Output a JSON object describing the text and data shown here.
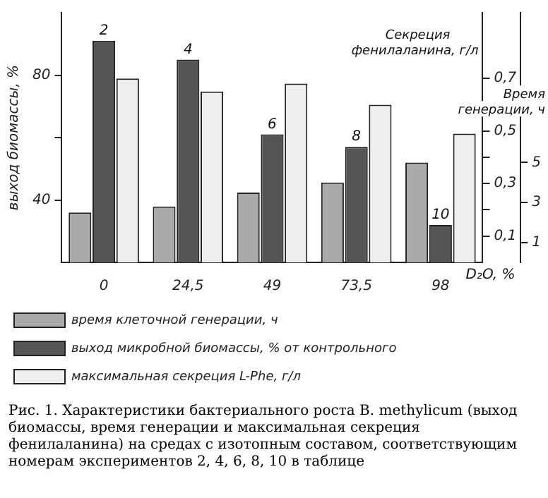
{
  "chart_data": {
    "type": "bar",
    "ylabel": "выход биомассы, %",
    "y2label": "Секреция фенилаланина, г/л",
    "y3label": "Время генерации, ч",
    "xlabel": "D₂O, %",
    "categories": [
      "0",
      "24,5",
      "49",
      "73,5",
      "98"
    ],
    "ylim": [
      20,
      100
    ],
    "yticks": [
      40,
      {
        "value": 60,
        "label": null
      },
      80
    ],
    "y2lim": [
      0,
      0.95
    ],
    "y2ticks": [
      {
        "value": 0.1,
        "label": "0,1"
      },
      {
        "value": 0.2,
        "label": null
      },
      {
        "value": 0.3,
        "label": "0,3"
      },
      {
        "value": 0.4,
        "label": null
      },
      {
        "value": 0.5,
        "label": "0,5"
      },
      {
        "value": 0.6,
        "label": null
      },
      {
        "value": 0.7,
        "label": "0,7"
      }
    ],
    "y3lim": [
      0,
      12.5
    ],
    "y3ticks": [
      1,
      3,
      5
    ],
    "series": [
      {
        "name": "выход микробной биомассы, % от контрольного",
        "color": "#555555",
        "values": [
          91,
          85,
          61,
          57,
          32
        ]
      },
      {
        "name": "максимальная секреция L-Phe, г/л",
        "color": "#eeeeee",
        "axis": "y2",
        "values": [
          0.7,
          0.65,
          0.68,
          0.6,
          0.49
        ]
      },
      {
        "name": "время клеточной генерации, ч",
        "color": "#aaaaaa",
        "axis": "y3",
        "values": [
          2.5,
          2.8,
          3.5,
          4.0,
          5.0
        ]
      }
    ],
    "annotations": [
      {
        "text": "2",
        "x": "0",
        "y": 91
      },
      {
        "text": "4",
        "x": "24,5",
        "y": 85
      },
      {
        "text": "6",
        "x": "49",
        "y": 61
      },
      {
        "text": "8",
        "x": "73,5",
        "y": 57
      },
      {
        "text": "10",
        "x": "98",
        "y": 32
      },
      "Рис. 1. Характеристики бактериального роста B. methylicum (выход биомассы, время генерации и максимальная секреция фенилаланина) на средах с изотопным составом, соответствующим номерам экспериментов 2, 4, 6, 8, 10 в таблице"
    ],
    "grid": false,
    "legend": "bottom"
  }
}
